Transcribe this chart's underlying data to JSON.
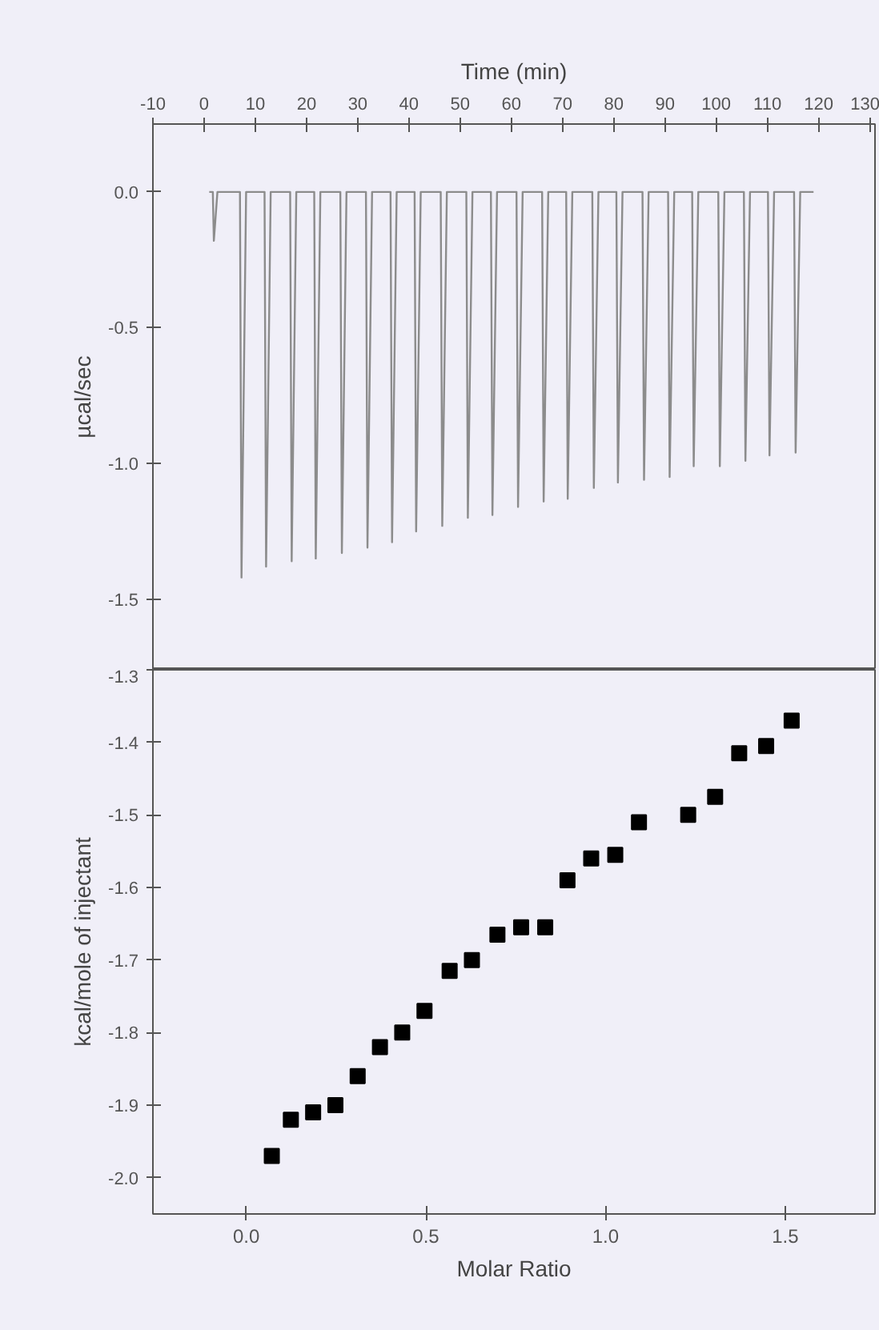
{
  "chart_data": [
    {
      "type": "line",
      "xlabel": "Time (min)",
      "ylabel": "µcal/sec",
      "xlim": [
        -10,
        131
      ],
      "xticks": [
        -10,
        0,
        10,
        20,
        30,
        40,
        50,
        60,
        70,
        80,
        90,
        100,
        110,
        120,
        130
      ],
      "ylim": [
        -1.76,
        0.25
      ],
      "yticks": [
        {
          "value": 0,
          "label": "0.0"
        },
        {
          "value": -0.5,
          "label": "-0.5"
        },
        {
          "value": -1,
          "label": "-1.0"
        },
        {
          "value": -1.5,
          "label": "-1.5"
        }
      ],
      "grid": false,
      "marker": "none",
      "line_style": "solid",
      "tick_labels": "xy",
      "series": [
        {
          "color": "#8c8c8c",
          "x": [
            1,
            1.7,
            1.9,
            2.6,
            7.0,
            7.3,
            8.2,
            11.8,
            12.1,
            13.0,
            16.8,
            17.1,
            18.0,
            21.5,
            21.8,
            22.7,
            26.6,
            26.9,
            27.8,
            31.6,
            31.9,
            32.8,
            36.4,
            36.7,
            37.6,
            41.1,
            41.4,
            42.3,
            46.2,
            46.5,
            47.4,
            51.2,
            51.5,
            52.4,
            56.0,
            56.3,
            57.2,
            61.0,
            61.3,
            62.2,
            66.0,
            66.3,
            67.2,
            70.7,
            71.0,
            71.9,
            75.8,
            76.1,
            77.0,
            80.5,
            80.8,
            81.7,
            85.6,
            85.9,
            86.8,
            90.6,
            90.9,
            91.8,
            95.3,
            95.6,
            96.5,
            100.4,
            100.7,
            101.6,
            105.4,
            105.7,
            106.6,
            110.1,
            110.4,
            111.3,
            115.2,
            115.5,
            116.4,
            119
          ],
          "values": [
            0,
            0,
            -0.18,
            0,
            0,
            -1.42,
            0,
            0,
            -1.38,
            0,
            0,
            -1.36,
            0,
            0,
            -1.35,
            0,
            0,
            -1.33,
            0,
            0,
            -1.31,
            0,
            0,
            -1.29,
            0,
            0,
            -1.25,
            0,
            0,
            -1.23,
            0,
            0,
            -1.2,
            0,
            0,
            -1.19,
            0,
            0,
            -1.16,
            0,
            0,
            -1.14,
            0,
            0,
            -1.13,
            0,
            0,
            -1.09,
            0,
            0,
            -1.07,
            0,
            0,
            -1.06,
            0,
            0,
            -1.05,
            0,
            0,
            -1.01,
            0,
            0,
            -1.01,
            0,
            0,
            -0.99,
            0,
            0,
            -0.97,
            0,
            0,
            -0.96,
            0,
            0
          ]
        }
      ]
    },
    {
      "type": "scatter",
      "xlabel": "Molar Ratio",
      "ylabel": "kcal/mole of injectant",
      "xlim": [
        -0.26,
        1.75
      ],
      "xticks": [
        {
          "value": 0,
          "label": "0.0"
        },
        0.5,
        {
          "value": 1,
          "label": "1.0"
        },
        1.5
      ],
      "ylim": [
        -2.05,
        -1.3
      ],
      "yticks": [
        -1.3,
        -1.4,
        -1.5,
        -1.6,
        -1.7,
        -1.8,
        -1.9,
        {
          "value": -2,
          "label": "-2.0"
        }
      ],
      "grid": false,
      "marker": "square",
      "series": [
        {
          "color": "#000000",
          "x": [
            0.071,
            0.124,
            0.186,
            0.248,
            0.31,
            0.372,
            0.434,
            0.496,
            0.566,
            0.628,
            0.699,
            0.765,
            0.832,
            0.894,
            0.96,
            1.027,
            1.093,
            1.23,
            1.305,
            1.372,
            1.447,
            1.518
          ],
          "values": [
            -1.97,
            -1.92,
            -1.91,
            -1.9,
            -1.86,
            -1.82,
            -1.8,
            -1.77,
            -1.715,
            -1.7,
            -1.665,
            -1.655,
            -1.655,
            -1.59,
            -1.56,
            -1.555,
            -1.51,
            -1.5,
            -1.475,
            -1.415,
            -1.405,
            -1.37
          ]
        }
      ]
    }
  ]
}
